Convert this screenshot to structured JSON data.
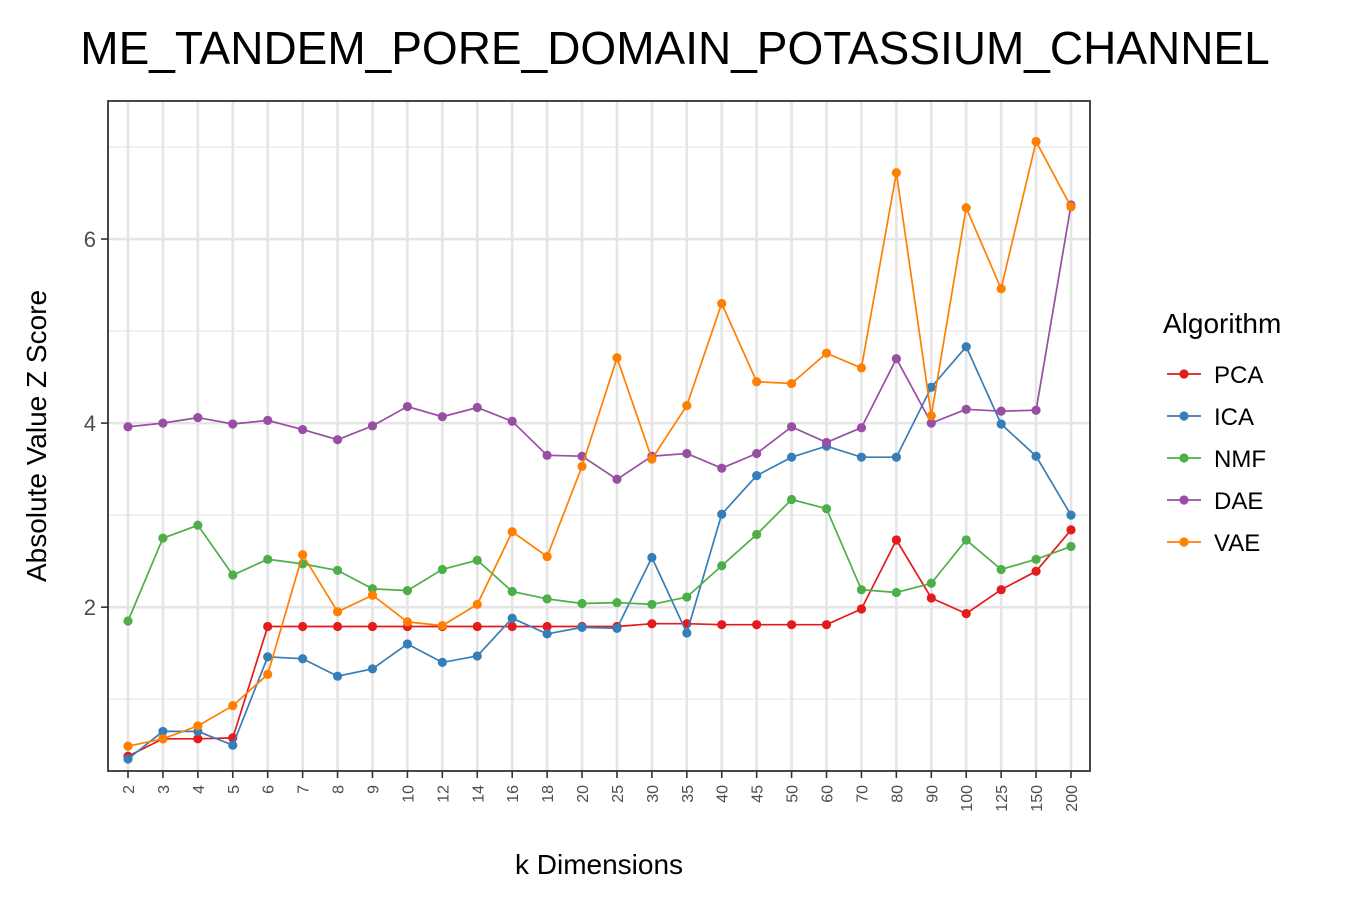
{
  "chart_data": {
    "type": "line",
    "title": "ME_TANDEM_PORE_DOMAIN_POTASSIUM_CHANNEL",
    "xlabel": "k Dimensions",
    "ylabel": "Absolute Value Z Score",
    "categories": [
      "2",
      "3",
      "4",
      "5",
      "6",
      "7",
      "8",
      "9",
      "10",
      "12",
      "14",
      "16",
      "18",
      "20",
      "25",
      "30",
      "35",
      "40",
      "45",
      "50",
      "60",
      "70",
      "80",
      "90",
      "100",
      "125",
      "150",
      "200"
    ],
    "ylim": [
      0.22,
      7.5
    ],
    "yticks": [
      2,
      4,
      6
    ],
    "grid": true,
    "legend": {
      "title": "Algorithm",
      "position": "right"
    },
    "series": [
      {
        "name": "PCA",
        "color": "#E41A1C",
        "values": [
          0.38,
          0.57,
          0.57,
          0.58,
          1.79,
          1.79,
          1.79,
          1.79,
          1.79,
          1.79,
          1.79,
          1.79,
          1.79,
          1.79,
          1.79,
          1.82,
          1.82,
          1.81,
          1.81,
          1.81,
          1.81,
          1.98,
          2.73,
          2.1,
          1.93,
          2.19,
          2.39,
          2.84
        ]
      },
      {
        "name": "ICA",
        "color": "#377EB8",
        "values": [
          0.35,
          0.65,
          0.65,
          0.5,
          1.46,
          1.44,
          1.25,
          1.33,
          1.6,
          1.4,
          1.47,
          1.88,
          1.71,
          1.78,
          1.77,
          2.54,
          1.72,
          3.01,
          3.43,
          3.63,
          3.75,
          3.63,
          3.63,
          4.39,
          4.83,
          3.99,
          3.64,
          3.0
        ]
      },
      {
        "name": "NMF",
        "color": "#4DAF4A",
        "values": [
          1.85,
          2.75,
          2.89,
          2.35,
          2.52,
          2.47,
          2.4,
          2.2,
          2.18,
          2.41,
          2.51,
          2.17,
          2.09,
          2.04,
          2.05,
          2.03,
          2.11,
          2.45,
          2.79,
          3.17,
          3.07,
          2.19,
          2.16,
          2.26,
          2.73,
          2.41,
          2.52,
          2.66
        ]
      },
      {
        "name": "DAE",
        "color": "#984EA3",
        "values": [
          3.96,
          4.0,
          4.06,
          3.99,
          4.03,
          3.93,
          3.82,
          3.97,
          4.18,
          4.07,
          4.17,
          4.02,
          3.65,
          3.64,
          3.39,
          3.64,
          3.67,
          3.51,
          3.67,
          3.96,
          3.79,
          3.95,
          4.7,
          4.0,
          4.15,
          4.13,
          4.14,
          6.37
        ]
      },
      {
        "name": "VAE",
        "color": "#FF7F00",
        "values": [
          0.49,
          0.57,
          0.71,
          0.93,
          1.27,
          2.57,
          1.95,
          2.13,
          1.84,
          1.8,
          2.03,
          2.82,
          2.55,
          3.53,
          4.71,
          3.61,
          4.19,
          5.3,
          4.45,
          4.43,
          4.76,
          4.6,
          6.72,
          4.08,
          6.34,
          5.46,
          7.06,
          6.35
        ]
      }
    ]
  }
}
